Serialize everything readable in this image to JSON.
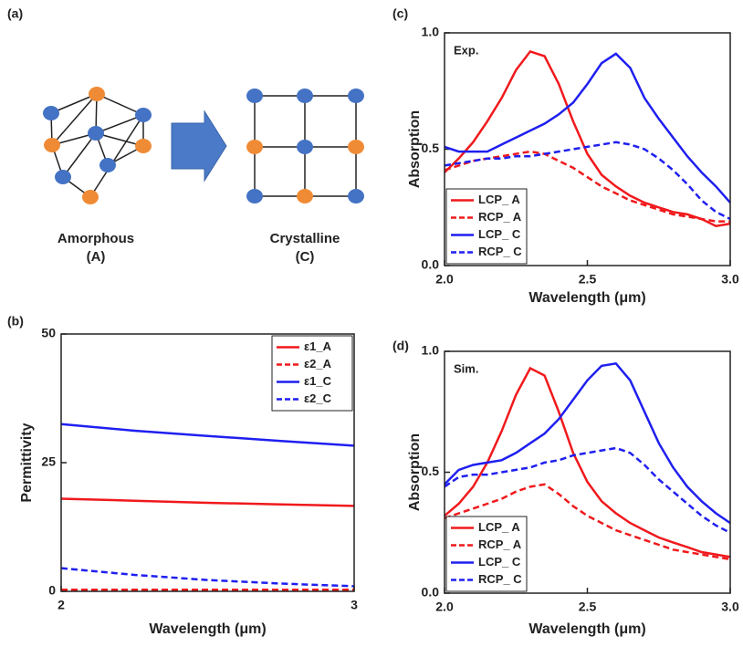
{
  "diagram": {
    "label": "(a)",
    "left": {
      "name": "Amorphous",
      "code": "(A)"
    },
    "right": {
      "name": "Crystalline",
      "code": "(C)"
    }
  },
  "chart_data": [
    {
      "type": "line",
      "label": "(b)",
      "xlabel": "Wavelength (μm)",
      "ylabel": "Permittivity",
      "x": [
        2,
        2.25,
        2.5,
        2.75,
        3
      ],
      "xlim": [
        2,
        3
      ],
      "xticks": [
        2,
        3
      ],
      "ylim": [
        0,
        50
      ],
      "yticks": [
        0,
        25,
        50
      ],
      "legend": "upper right",
      "series": [
        {
          "name": "ε1_A",
          "color": "#f0191c",
          "style": "solid",
          "values": [
            18,
            17.6,
            17.2,
            16.9,
            16.6
          ]
        },
        {
          "name": "ε2_A",
          "color": "#f0191c",
          "style": "dashed",
          "values": [
            0.3,
            0.3,
            0.3,
            0.3,
            0.3
          ]
        },
        {
          "name": "ε1_C",
          "color": "#1f1ff0",
          "style": "solid",
          "values": [
            32.5,
            31.2,
            30.2,
            29.2,
            28.3
          ]
        },
        {
          "name": "ε2_C",
          "color": "#1f1ff0",
          "style": "dashed",
          "values": [
            4.5,
            3.2,
            2.2,
            1.5,
            1.0
          ]
        }
      ]
    },
    {
      "type": "line",
      "label": "(c)",
      "note": "Exp.",
      "xlabel": "Wavelength (μm)",
      "ylabel": "Absorption",
      "x": [
        2,
        2.05,
        2.1,
        2.15,
        2.2,
        2.25,
        2.3,
        2.35,
        2.4,
        2.45,
        2.5,
        2.55,
        2.6,
        2.65,
        2.7,
        2.75,
        2.8,
        2.85,
        2.9,
        2.95,
        3
      ],
      "xlim": [
        2,
        3
      ],
      "xticks": [
        {
          "value": 2,
          "label": "2.0"
        },
        {
          "value": 2.5,
          "label": "2.5"
        },
        {
          "value": 3,
          "label": "3.0"
        }
      ],
      "ylim": [
        0,
        1
      ],
      "yticks": [
        {
          "value": 0,
          "label": "0.0"
        },
        {
          "value": 0.5,
          "label": "0.5"
        },
        {
          "value": 1,
          "label": "1.0"
        }
      ],
      "legend": "lower left",
      "series": [
        {
          "name": "LCP_ A",
          "color": "#f0191c",
          "style": "solid",
          "values": [
            0.4,
            0.46,
            0.53,
            0.62,
            0.72,
            0.84,
            0.92,
            0.9,
            0.78,
            0.62,
            0.48,
            0.39,
            0.34,
            0.3,
            0.27,
            0.25,
            0.23,
            0.22,
            0.2,
            0.17,
            0.18
          ]
        },
        {
          "name": "RCP_ A",
          "color": "#f0191c",
          "style": "dashed",
          "values": [
            0.41,
            0.43,
            0.45,
            0.46,
            0.47,
            0.48,
            0.49,
            0.48,
            0.45,
            0.42,
            0.38,
            0.34,
            0.31,
            0.28,
            0.26,
            0.24,
            0.22,
            0.21,
            0.2,
            0.19,
            0.19
          ]
        },
        {
          "name": "LCP_ C",
          "color": "#1f1ff0",
          "style": "solid",
          "values": [
            0.51,
            0.49,
            0.49,
            0.49,
            0.52,
            0.55,
            0.58,
            0.61,
            0.65,
            0.7,
            0.78,
            0.87,
            0.91,
            0.85,
            0.72,
            0.63,
            0.55,
            0.47,
            0.4,
            0.34,
            0.27
          ]
        },
        {
          "name": "RCP_ C",
          "color": "#1f1ff0",
          "style": "dashed",
          "values": [
            0.43,
            0.44,
            0.45,
            0.46,
            0.46,
            0.47,
            0.47,
            0.48,
            0.49,
            0.5,
            0.51,
            0.52,
            0.53,
            0.52,
            0.5,
            0.46,
            0.41,
            0.35,
            0.28,
            0.23,
            0.2
          ]
        }
      ]
    },
    {
      "type": "line",
      "label": "(d)",
      "note": "Sim.",
      "xlabel": "Wavelength (μm)",
      "ylabel": "Absorption",
      "x": [
        2,
        2.05,
        2.1,
        2.15,
        2.2,
        2.25,
        2.3,
        2.35,
        2.4,
        2.45,
        2.5,
        2.55,
        2.6,
        2.65,
        2.7,
        2.75,
        2.8,
        2.85,
        2.9,
        2.95,
        3
      ],
      "xlim": [
        2,
        3
      ],
      "xticks": [
        {
          "value": 2,
          "label": "2.0"
        },
        {
          "value": 2.5,
          "label": "2.5"
        },
        {
          "value": 3,
          "label": "3.0"
        }
      ],
      "ylim": [
        0,
        1
      ],
      "yticks": [
        {
          "value": 0,
          "label": "0.0"
        },
        {
          "value": 0.5,
          "label": "0.5"
        },
        {
          "value": 1,
          "label": "1.0"
        }
      ],
      "legend": "lower left",
      "series": [
        {
          "name": "LCP_ A",
          "color": "#f0191c",
          "style": "solid",
          "values": [
            0.32,
            0.37,
            0.44,
            0.54,
            0.67,
            0.82,
            0.93,
            0.9,
            0.75,
            0.58,
            0.46,
            0.38,
            0.33,
            0.29,
            0.26,
            0.23,
            0.21,
            0.19,
            0.17,
            0.16,
            0.15
          ]
        },
        {
          "name": "RCP_ A",
          "color": "#f0191c",
          "style": "dashed",
          "values": [
            0.31,
            0.33,
            0.35,
            0.37,
            0.39,
            0.42,
            0.44,
            0.45,
            0.41,
            0.36,
            0.32,
            0.29,
            0.26,
            0.24,
            0.22,
            0.2,
            0.18,
            0.17,
            0.16,
            0.15,
            0.14
          ]
        },
        {
          "name": "LCP_ C",
          "color": "#1f1ff0",
          "style": "solid",
          "values": [
            0.45,
            0.51,
            0.53,
            0.54,
            0.55,
            0.58,
            0.62,
            0.66,
            0.72,
            0.8,
            0.88,
            0.94,
            0.95,
            0.88,
            0.75,
            0.62,
            0.52,
            0.44,
            0.38,
            0.33,
            0.29
          ]
        },
        {
          "name": "RCP_ C",
          "color": "#1f1ff0",
          "style": "dashed",
          "values": [
            0.44,
            0.48,
            0.49,
            0.49,
            0.5,
            0.51,
            0.52,
            0.54,
            0.55,
            0.57,
            0.58,
            0.59,
            0.6,
            0.58,
            0.53,
            0.47,
            0.42,
            0.37,
            0.32,
            0.28,
            0.25
          ]
        }
      ]
    }
  ]
}
